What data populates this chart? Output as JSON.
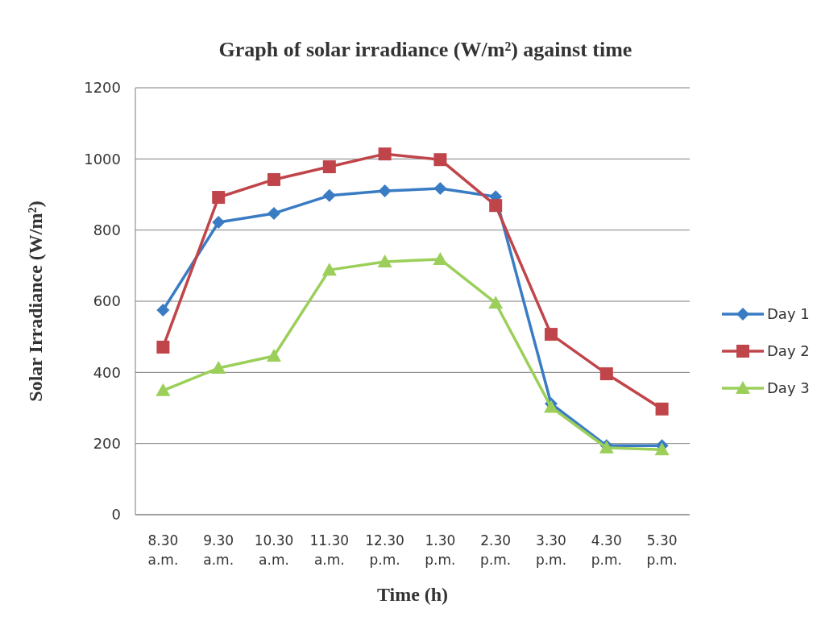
{
  "chart_data": {
    "type": "line",
    "title": "Graph of solar irradiance (W/m²) against time",
    "xlabel": "Time (h)",
    "ylabel": "Solar Irradiance (W/m²)",
    "categories": [
      "8.30\na.m.",
      "9.30\na.m.",
      "10.30\na.m.",
      "11.30\na.m.",
      "12.30\np.m.",
      "1.30\np.m.",
      "2.30\np.m.",
      "3.30\np.m.",
      "4.30\np.m.",
      "5.30\np.m."
    ],
    "series": [
      {
        "name": "Day 1",
        "color": "#3a7cc4",
        "marker": "diamond",
        "values": [
          575,
          822,
          847,
          897,
          910,
          917,
          894,
          312,
          194,
          194
        ]
      },
      {
        "name": "Day 2",
        "color": "#c0454a",
        "marker": "square",
        "values": [
          471,
          892,
          942,
          978,
          1014,
          998,
          869,
          507,
          396,
          297
        ]
      },
      {
        "name": "Day 3",
        "color": "#9bcf5a",
        "marker": "triangle",
        "values": [
          349,
          412,
          446,
          688,
          711,
          718,
          595,
          302,
          188,
          183
        ]
      }
    ],
    "ylim": [
      0,
      1200
    ],
    "yticks": [
      0,
      200,
      400,
      600,
      800,
      1000,
      1200
    ],
    "grid": "y",
    "legend": "right",
    "line_style": "solid"
  }
}
